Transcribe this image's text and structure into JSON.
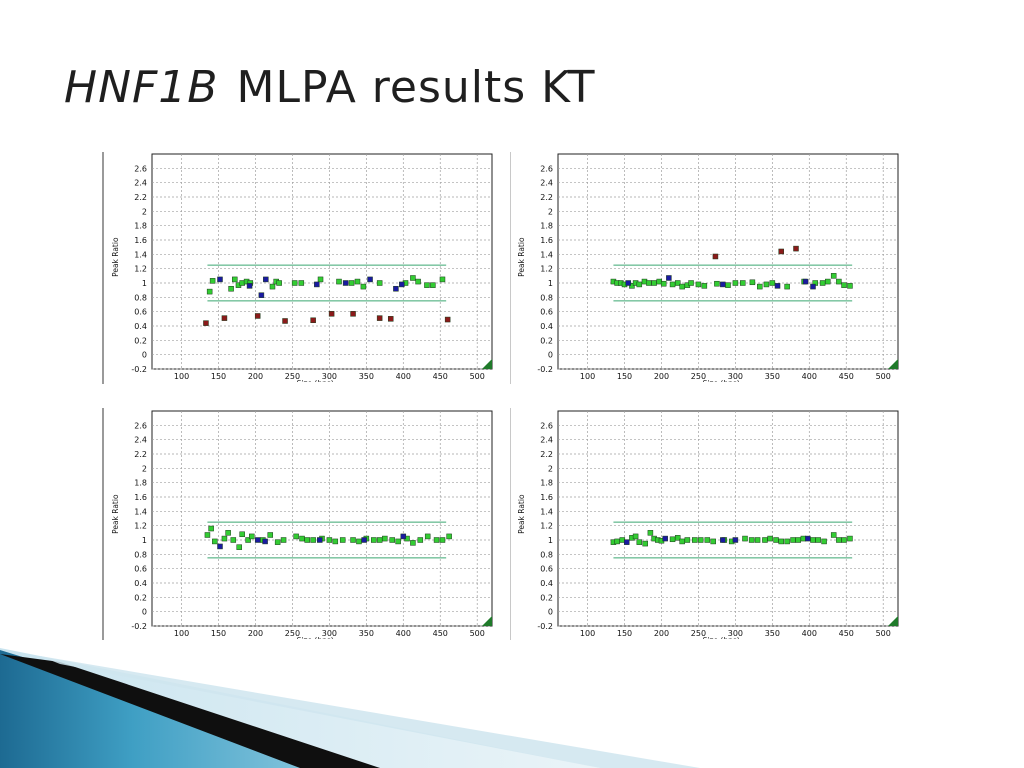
{
  "slide": {
    "title_gene": "HNF1B",
    "title_rest": "MLPA results KT"
  },
  "colors": {
    "normal_probe": "#33cc33",
    "reference_probe": "#1a1aa0",
    "deletion_probe": "#8b1a1a",
    "duplication_probe": "#8b1a1a",
    "threshold_line": "#3aa870",
    "grid": "#a0a0a0",
    "corner_marker": "#1f7a2a"
  },
  "axis": {
    "ylabel": "Peak Ratio",
    "xlabel": "Size (bps)",
    "xlim": [
      60,
      520
    ],
    "ylim": [
      -0.2,
      2.8
    ],
    "xticks": [
      100,
      150,
      200,
      250,
      300,
      350,
      400,
      450,
      500
    ],
    "xtick_labels": [
      "100",
      "150",
      "200",
      "250",
      "300",
      "350",
      "400",
      "450",
      "500"
    ],
    "yticks": [
      -0.2,
      0,
      0.2,
      0.4,
      0.6,
      0.8,
      1,
      1.2,
      1.4,
      1.6,
      1.8,
      2,
      2.2,
      2.4,
      2.6
    ],
    "ytick_labels": [
      "-0.2",
      "0",
      "0.2",
      "0.4",
      "0.6",
      "0.8",
      "1",
      "1.2",
      "1.4",
      "1.6",
      "1.8",
      "2",
      "2.2",
      "2.4",
      "2.6"
    ],
    "grid": true
  },
  "chart_data": [
    {
      "type": "scatter",
      "xlabel": "Size (bps)",
      "ylabel": "Peak Ratio",
      "xlim": [
        60,
        520
      ],
      "ylim": [
        -0.2,
        2.8
      ],
      "thresholds": [
        0.75,
        1.25
      ],
      "series": [
        {
          "kind": "normal",
          "points": [
            [
              138,
              0.88
            ],
            [
              142,
              1.03
            ],
            [
              167,
              0.92
            ],
            [
              172,
              1.05
            ],
            [
              177,
              0.97
            ],
            [
              182,
              1.0
            ],
            [
              188,
              1.02
            ],
            [
              193,
              1.0
            ],
            [
              223,
              0.95
            ],
            [
              228,
              1.02
            ],
            [
              232,
              1.0
            ],
            [
              253,
              1.0
            ],
            [
              262,
              1.0
            ],
            [
              288,
              1.05
            ],
            [
              313,
              1.02
            ],
            [
              330,
              1.0
            ],
            [
              338,
              1.02
            ],
            [
              346,
              0.95
            ],
            [
              368,
              1.0
            ],
            [
              403,
              1.0
            ],
            [
              413,
              1.07
            ],
            [
              420,
              1.02
            ],
            [
              432,
              0.97
            ],
            [
              440,
              0.97
            ],
            [
              453,
              1.05
            ]
          ]
        },
        {
          "kind": "reference",
          "points": [
            [
              152,
              1.05
            ],
            [
              192,
              0.96
            ],
            [
              208,
              0.83
            ],
            [
              214,
              1.05
            ],
            [
              283,
              0.98
            ],
            [
              322,
              1.0
            ],
            [
              355,
              1.05
            ],
            [
              390,
              0.92
            ],
            [
              398,
              0.98
            ]
          ]
        },
        {
          "kind": "deletion",
          "points": [
            [
              133,
              0.44
            ],
            [
              158,
              0.51
            ],
            [
              203,
              0.54
            ],
            [
              240,
              0.47
            ],
            [
              278,
              0.48
            ],
            [
              303,
              0.57
            ],
            [
              332,
              0.57
            ],
            [
              368,
              0.51
            ],
            [
              383,
              0.5
            ],
            [
              460,
              0.49
            ]
          ]
        }
      ]
    },
    {
      "type": "scatter",
      "xlabel": "Size (bps)",
      "ylabel": "Peak Ratio",
      "xlim": [
        60,
        520
      ],
      "ylim": [
        -0.2,
        2.8
      ],
      "thresholds": [
        0.75,
        1.25
      ],
      "series": [
        {
          "kind": "normal",
          "points": [
            [
              135,
              1.02
            ],
            [
              140,
              1.0
            ],
            [
              145,
              1.0
            ],
            [
              150,
              0.98
            ],
            [
              160,
              0.96
            ],
            [
              165,
              1.0
            ],
            [
              170,
              0.98
            ],
            [
              177,
              1.02
            ],
            [
              183,
              1.0
            ],
            [
              190,
              1.0
            ],
            [
              197,
              1.02
            ],
            [
              203,
              0.99
            ],
            [
              215,
              0.98
            ],
            [
              222,
              1.0
            ],
            [
              228,
              0.95
            ],
            [
              235,
              0.97
            ],
            [
              240,
              1.0
            ],
            [
              250,
              0.98
            ],
            [
              258,
              0.96
            ],
            [
              275,
              0.99
            ],
            [
              290,
              0.97
            ],
            [
              300,
              1.0
            ],
            [
              310,
              1.0
            ],
            [
              323,
              1.01
            ],
            [
              333,
              0.95
            ],
            [
              342,
              0.98
            ],
            [
              350,
              1.0
            ],
            [
              370,
              0.95
            ],
            [
              393,
              1.02
            ],
            [
              408,
              1.0
            ],
            [
              418,
              1.0
            ],
            [
              425,
              1.02
            ],
            [
              433,
              1.1
            ],
            [
              440,
              1.02
            ],
            [
              447,
              0.97
            ],
            [
              455,
              0.96
            ]
          ]
        },
        {
          "kind": "reference",
          "points": [
            [
              155,
              1.0
            ],
            [
              210,
              1.07
            ],
            [
              283,
              0.98
            ],
            [
              357,
              0.96
            ],
            [
              395,
              1.02
            ],
            [
              405,
              0.95
            ]
          ]
        },
        {
          "kind": "duplication",
          "points": [
            [
              273,
              1.37
            ],
            [
              362,
              1.44
            ],
            [
              382,
              1.48
            ]
          ]
        }
      ]
    },
    {
      "type": "scatter",
      "xlabel": "Size (bps)",
      "ylabel": "Peak Ratio",
      "xlim": [
        60,
        520
      ],
      "ylim": [
        -0.2,
        2.8
      ],
      "thresholds": [
        0.75,
        1.25
      ],
      "series": [
        {
          "kind": "normal",
          "points": [
            [
              135,
              1.07
            ],
            [
              140,
              1.16
            ],
            [
              145,
              0.98
            ],
            [
              158,
              1.02
            ],
            [
              163,
              1.1
            ],
            [
              170,
              1.0
            ],
            [
              178,
              0.9
            ],
            [
              182,
              1.08
            ],
            [
              190,
              1.0
            ],
            [
              195,
              1.05
            ],
            [
              210,
              1.0
            ],
            [
              220,
              1.07
            ],
            [
              230,
              0.97
            ],
            [
              238,
              1.0
            ],
            [
              255,
              1.05
            ],
            [
              263,
              1.02
            ],
            [
              270,
              1.0
            ],
            [
              278,
              1.0
            ],
            [
              290,
              1.02
            ],
            [
              300,
              1.0
            ],
            [
              308,
              0.98
            ],
            [
              318,
              1.0
            ],
            [
              332,
              1.0
            ],
            [
              340,
              0.98
            ],
            [
              350,
              1.02
            ],
            [
              360,
              1.0
            ],
            [
              368,
              1.0
            ],
            [
              375,
              1.02
            ],
            [
              385,
              1.0
            ],
            [
              393,
              0.98
            ],
            [
              405,
              1.02
            ],
            [
              413,
              0.96
            ],
            [
              423,
              1.0
            ],
            [
              433,
              1.05
            ],
            [
              445,
              1.0
            ],
            [
              453,
              1.0
            ],
            [
              462,
              1.05
            ]
          ]
        },
        {
          "kind": "reference",
          "points": [
            [
              152,
              0.91
            ],
            [
              203,
              1.0
            ],
            [
              213,
              0.98
            ],
            [
              287,
              1.0
            ],
            [
              347,
              1.0
            ],
            [
              400,
              1.05
            ]
          ]
        }
      ]
    },
    {
      "type": "scatter",
      "xlabel": "Size (bps)",
      "ylabel": "Peak Ratio",
      "xlim": [
        60,
        520
      ],
      "ylim": [
        -0.2,
        2.8
      ],
      "thresholds": [
        0.75,
        1.25
      ],
      "series": [
        {
          "kind": "normal",
          "points": [
            [
              135,
              0.97
            ],
            [
              140,
              0.98
            ],
            [
              147,
              1.0
            ],
            [
              160,
              1.03
            ],
            [
              165,
              1.05
            ],
            [
              170,
              0.97
            ],
            [
              178,
              0.95
            ],
            [
              185,
              1.1
            ],
            [
              190,
              1.02
            ],
            [
              195,
              1.0
            ],
            [
              200,
              0.99
            ],
            [
              215,
              1.01
            ],
            [
              222,
              1.03
            ],
            [
              228,
              0.98
            ],
            [
              235,
              1.0
            ],
            [
              245,
              1.0
            ],
            [
              253,
              1.0
            ],
            [
              262,
              1.0
            ],
            [
              270,
              0.98
            ],
            [
              285,
              1.0
            ],
            [
              295,
              0.98
            ],
            [
              313,
              1.02
            ],
            [
              322,
              1.0
            ],
            [
              330,
              1.0
            ],
            [
              340,
              1.0
            ],
            [
              347,
              1.02
            ],
            [
              355,
              1.0
            ],
            [
              362,
              0.98
            ],
            [
              370,
              0.98
            ],
            [
              378,
              1.0
            ],
            [
              385,
              1.0
            ],
            [
              392,
              1.02
            ],
            [
              405,
              1.0
            ],
            [
              412,
              1.0
            ],
            [
              420,
              0.98
            ],
            [
              433,
              1.07
            ],
            [
              440,
              1.0
            ],
            [
              447,
              1.0
            ],
            [
              455,
              1.02
            ]
          ]
        },
        {
          "kind": "reference",
          "points": [
            [
              153,
              0.97
            ],
            [
              205,
              1.02
            ],
            [
              283,
              1.0
            ],
            [
              300,
              1.0
            ],
            [
              398,
              1.02
            ]
          ]
        }
      ]
    }
  ]
}
